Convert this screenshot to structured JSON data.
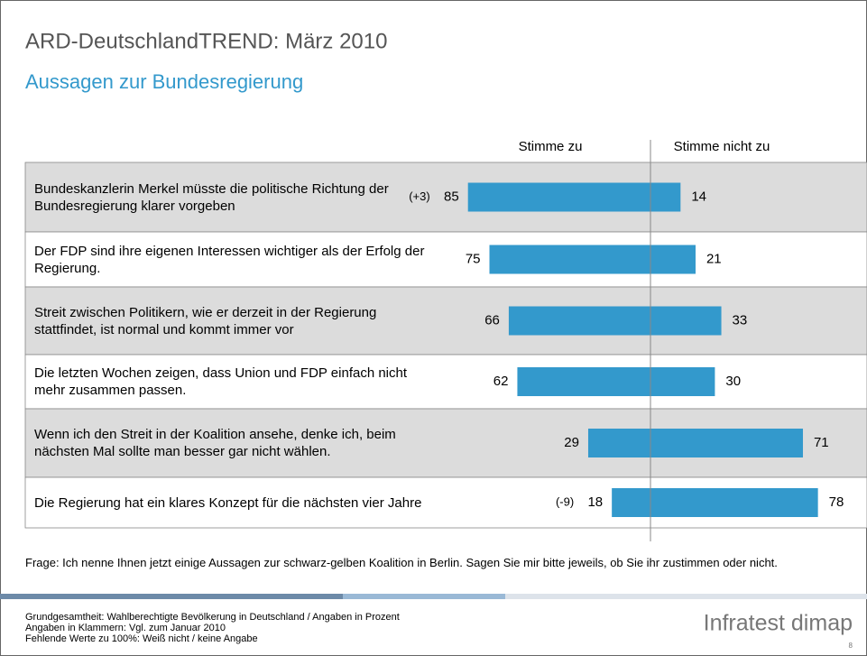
{
  "header": {
    "title": "ARD-DeutschlandTREND: März 2010",
    "subtitle": "Aussagen zur Bundesregierung"
  },
  "chart_data": {
    "type": "bar",
    "categories": [
      "Bundeskanzlerin Merkel müsste die politische Richtung der Bundesregierung klarer vorgeben",
      "Der FDP sind ihre eigenen Interessen wichtiger als der Erfolg der Regierung.",
      "Streit zwischen Politikern, wie er derzeit in der Regierung stattfindet, ist normal und kommt immer vor",
      "Die letzten Wochen zeigen, dass Union und FDP einfach nicht mehr zusammen passen.",
      "Wenn ich den Streit in der Koalition ansehe, denke ich, beim nächsten Mal sollte man besser gar nicht wählen.",
      "Die Regierung hat ein klares Konzept für die nächsten vier Jahre"
    ],
    "series": [
      {
        "name": "Stimme zu",
        "color": "#3399cc",
        "values": [
          85,
          75,
          66,
          62,
          29,
          18
        ]
      },
      {
        "name": "Stimme nicht zu",
        "color": "#3399cc",
        "values": [
          14,
          21,
          33,
          30,
          71,
          78
        ]
      }
    ],
    "changes": [
      3,
      null,
      null,
      null,
      null,
      -9
    ],
    "change_labels": [
      "(+3)",
      null,
      null,
      null,
      null,
      "(-9)"
    ],
    "xlim": [
      -100,
      100
    ]
  },
  "footer": {
    "question": "Frage: Ich nenne Ihnen jetzt einige Aussagen zur schwarz-gelben Koalition in Berlin. Sagen Sie mir bitte jeweils, ob Sie ihr zustimmen oder nicht.",
    "notes": [
      "Grundgesamtheit: Wahlberechtigte Bevölkerung in Deutschland / Angaben in Prozent",
      "Angaben in Klammern: Vgl. zum Januar 2010",
      "Fehlende Werte zu 100%: Weiß nicht / keine Angabe"
    ],
    "logo": "Infratest dimap",
    "page": "8"
  }
}
